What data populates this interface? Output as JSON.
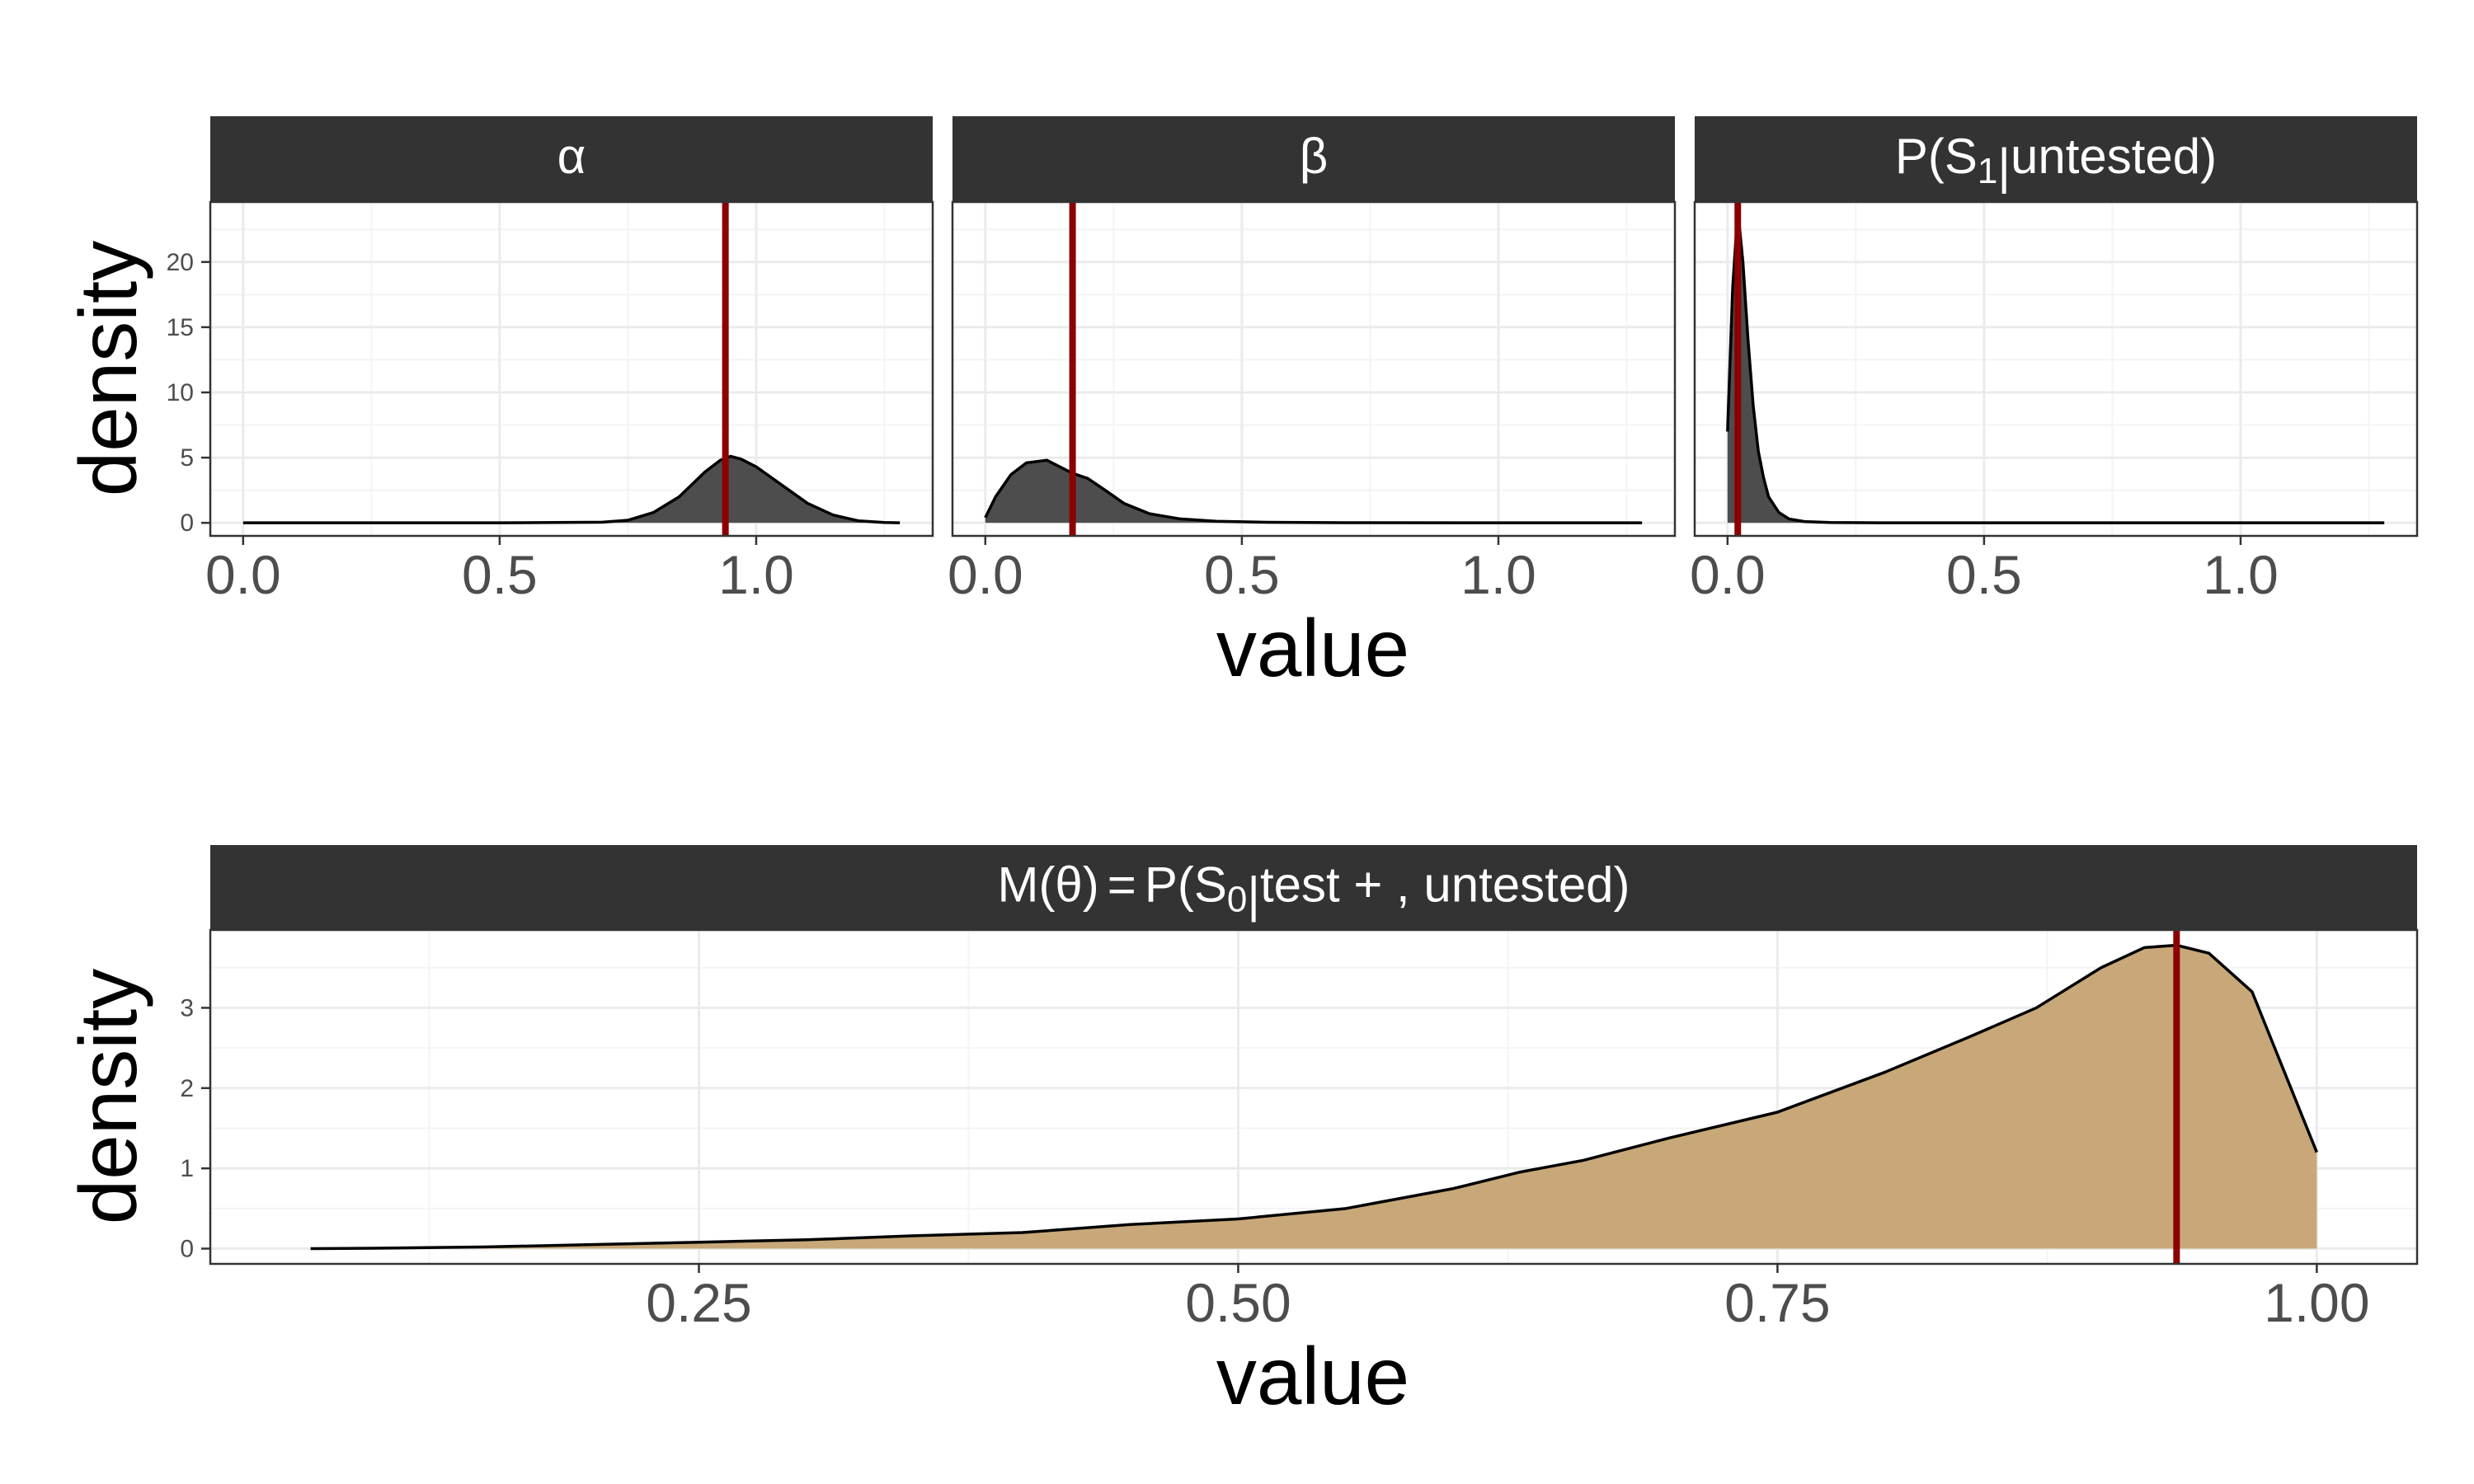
{
  "colors": {
    "strip_bg": "#333333",
    "strip_text": "#ffffff",
    "grid_major": "#ebebeb",
    "grid_minor": "#f4f4f4",
    "panel_border": "#333333",
    "dark_fill": "#4d4d4d",
    "tan_fill": "#c8a878",
    "density_line": "#000000",
    "marker_line": "#8b0000",
    "tick_text": "#4d4d4d",
    "title_text": "#000000"
  },
  "chart_data": [
    {
      "type": "area",
      "facets": [
        {
          "id": "alpha",
          "strip": {
            "symbol": "α",
            "label": "α"
          },
          "marker": 0.94,
          "series": [
            {
              "x": 0.0,
              "y": 0.0
            },
            {
              "x": 0.5,
              "y": 0.0
            },
            {
              "x": 0.7,
              "y": 0.05
            },
            {
              "x": 0.75,
              "y": 0.2
            },
            {
              "x": 0.8,
              "y": 0.8
            },
            {
              "x": 0.85,
              "y": 2.0
            },
            {
              "x": 0.9,
              "y": 3.9
            },
            {
              "x": 0.93,
              "y": 4.8
            },
            {
              "x": 0.95,
              "y": 5.1
            },
            {
              "x": 0.97,
              "y": 4.9
            },
            {
              "x": 1.0,
              "y": 4.3
            },
            {
              "x": 1.05,
              "y": 2.9
            },
            {
              "x": 1.1,
              "y": 1.5
            },
            {
              "x": 1.15,
              "y": 0.6
            },
            {
              "x": 1.2,
              "y": 0.15
            },
            {
              "x": 1.25,
              "y": 0.03
            },
            {
              "x": 1.28,
              "y": 0.0
            }
          ]
        },
        {
          "id": "beta",
          "strip": {
            "symbol": "β",
            "label": "β"
          },
          "marker": 0.17,
          "series": [
            {
              "x": 0.0,
              "y": 0.4
            },
            {
              "x": 0.02,
              "y": 2.0
            },
            {
              "x": 0.05,
              "y": 3.7
            },
            {
              "x": 0.08,
              "y": 4.6
            },
            {
              "x": 0.1,
              "y": 4.7
            },
            {
              "x": 0.12,
              "y": 4.8
            },
            {
              "x": 0.14,
              "y": 4.4
            },
            {
              "x": 0.17,
              "y": 3.8
            },
            {
              "x": 0.2,
              "y": 3.4
            },
            {
              "x": 0.23,
              "y": 2.6
            },
            {
              "x": 0.27,
              "y": 1.5
            },
            {
              "x": 0.32,
              "y": 0.7
            },
            {
              "x": 0.38,
              "y": 0.3
            },
            {
              "x": 0.45,
              "y": 0.12
            },
            {
              "x": 0.55,
              "y": 0.04
            },
            {
              "x": 0.7,
              "y": 0.01
            },
            {
              "x": 1.0,
              "y": 0.0
            },
            {
              "x": 1.28,
              "y": 0.0
            }
          ]
        },
        {
          "id": "p_s1",
          "strip": {
            "prefix": "P(S",
            "sub": "1",
            "mid": "|",
            "suffix": "untested)",
            "label": "P(S1|untested)"
          },
          "marker": 0.02,
          "series": [
            {
              "x": 0.0,
              "y": 7.0
            },
            {
              "x": 0.01,
              "y": 18.0
            },
            {
              "x": 0.02,
              "y": 24.0
            },
            {
              "x": 0.03,
              "y": 20.0
            },
            {
              "x": 0.04,
              "y": 14.0
            },
            {
              "x": 0.05,
              "y": 9.0
            },
            {
              "x": 0.06,
              "y": 5.5
            },
            {
              "x": 0.07,
              "y": 3.5
            },
            {
              "x": 0.08,
              "y": 2.0
            },
            {
              "x": 0.1,
              "y": 0.8
            },
            {
              "x": 0.12,
              "y": 0.3
            },
            {
              "x": 0.15,
              "y": 0.1
            },
            {
              "x": 0.2,
              "y": 0.03
            },
            {
              "x": 0.3,
              "y": 0.0
            },
            {
              "x": 1.28,
              "y": 0.0
            }
          ]
        }
      ],
      "x_ticks": [
        0.0,
        0.5,
        1.0
      ],
      "x_tick_labels": [
        "0.0",
        "0.5",
        "1.0"
      ],
      "y_ticks": [
        0,
        5,
        10,
        15,
        20
      ],
      "y_tick_labels": [
        "0",
        "5",
        "10",
        "15",
        "20"
      ],
      "xlim": [
        -0.064,
        1.344
      ],
      "ylim": [
        -1.0,
        24.6
      ],
      "xlabel": "value",
      "ylabel": "density",
      "fill_color": "#4d4d4d",
      "marker_color": "#8b0000"
    },
    {
      "type": "area",
      "facets": [
        {
          "id": "m_theta",
          "strip": {
            "left": "M(θ)",
            "eq": "=",
            "prefix": "P(S",
            "sub": "0",
            "mid": "|",
            "suffix": "test + , untested)",
            "label": "M(θ) = P(S0|test + , untested)"
          },
          "marker": 0.935,
          "series": [
            {
              "x": 0.07,
              "y": 0.0
            },
            {
              "x": 0.1,
              "y": 0.005
            },
            {
              "x": 0.15,
              "y": 0.02
            },
            {
              "x": 0.2,
              "y": 0.05
            },
            {
              "x": 0.25,
              "y": 0.08
            },
            {
              "x": 0.3,
              "y": 0.11
            },
            {
              "x": 0.35,
              "y": 0.16
            },
            {
              "x": 0.4,
              "y": 0.2
            },
            {
              "x": 0.45,
              "y": 0.3
            },
            {
              "x": 0.5,
              "y": 0.37
            },
            {
              "x": 0.55,
              "y": 0.5
            },
            {
              "x": 0.6,
              "y": 0.75
            },
            {
              "x": 0.63,
              "y": 0.95
            },
            {
              "x": 0.66,
              "y": 1.1
            },
            {
              "x": 0.7,
              "y": 1.38
            },
            {
              "x": 0.75,
              "y": 1.7
            },
            {
              "x": 0.8,
              "y": 2.2
            },
            {
              "x": 0.84,
              "y": 2.65
            },
            {
              "x": 0.87,
              "y": 3.0
            },
            {
              "x": 0.9,
              "y": 3.5
            },
            {
              "x": 0.92,
              "y": 3.75
            },
            {
              "x": 0.935,
              "y": 3.78
            },
            {
              "x": 0.95,
              "y": 3.68
            },
            {
              "x": 0.97,
              "y": 3.2
            },
            {
              "x": 0.985,
              "y": 2.2
            },
            {
              "x": 1.0,
              "y": 1.2
            }
          ]
        }
      ],
      "x_ticks": [
        0.25,
        0.5,
        0.75,
        1.0
      ],
      "x_tick_labels": [
        "0.25",
        "0.50",
        "0.75",
        "1.00"
      ],
      "y_ticks": [
        0,
        1,
        2,
        3
      ],
      "y_tick_labels": [
        "0",
        "1",
        "2",
        "3"
      ],
      "xlim": [
        0.0235,
        1.0465
      ],
      "ylim": [
        -0.19,
        3.97
      ],
      "xlabel": "value",
      "ylabel": "density",
      "fill_color": "#c8a878",
      "marker_color": "#8b0000"
    }
  ]
}
